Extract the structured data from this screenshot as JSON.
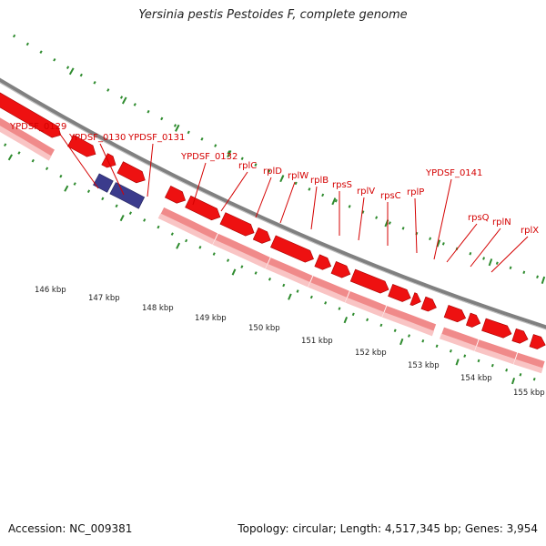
{
  "title": "Yersinia pestis Pestoides F, complete genome",
  "footer": {
    "accession": "Accession: NC_009381",
    "stats": "Topology: circular; Length: 4,517,345 bp; Genes: 3,954"
  },
  "colors": {
    "cds": "#ee1111",
    "cds_dark": "#a80000",
    "gene": "#f08a8a",
    "gene_light": "#f9c4c4",
    "rna": "#3b3b8c",
    "backbone": "#808080",
    "tick": "#2e8b2e",
    "label": "#d40000"
  },
  "gene_labels": [
    "YPDSF_0129",
    "YPDSF_0130",
    "YPDSF_0131",
    "YPDSF_0132",
    "rplC",
    "rplD",
    "rplW",
    "rplB",
    "rpsS",
    "rplV",
    "rpsC",
    "rplP",
    "YPDSF_0141",
    "rpsQ",
    "rplN",
    "rplX"
  ],
  "kbp_labels": [
    "146 kbp",
    "147 kbp",
    "148 kbp",
    "149 kbp",
    "150 kbp",
    "151 kbp",
    "152 kbp",
    "153 kbp",
    "154 kbp",
    "155 kbp"
  ]
}
